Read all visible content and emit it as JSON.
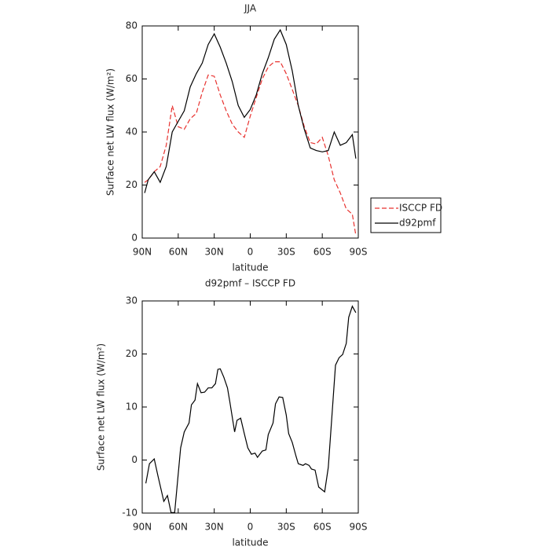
{
  "chart_data": [
    {
      "type": "line",
      "title": "JJA",
      "xlabel": "latitude",
      "ylabel": "Surface net LW flux (W/m²)",
      "x": [
        88,
        85,
        80,
        75,
        70,
        65,
        60,
        55,
        50,
        45,
        40,
        35,
        30,
        25,
        20,
        15,
        10,
        5,
        0,
        -5,
        -10,
        -15,
        -20,
        -25,
        -30,
        -35,
        -40,
        -45,
        -50,
        -55,
        -60,
        -65,
        -70,
        -75,
        -80,
        -85,
        -88
      ],
      "xlim": [
        90,
        -90
      ],
      "xticks": [
        {
          "value": 90,
          "label": "90N"
        },
        {
          "value": 60,
          "label": "60N"
        },
        {
          "value": 30,
          "label": "30N"
        },
        0,
        {
          "value": -30,
          "label": "30S"
        },
        {
          "value": -60,
          "label": "60S"
        },
        {
          "value": -90,
          "label": "90S"
        }
      ],
      "ylim": [
        0,
        80
      ],
      "yticks": [
        0,
        20,
        40,
        60,
        80
      ],
      "legend": "right",
      "series": [
        {
          "name": "ISCCP FD",
          "color": "#e8322f",
          "dashed": true,
          "values": [
            21,
            22,
            25,
            27,
            35,
            50,
            42,
            41,
            45,
            47,
            55,
            61.5,
            61,
            54,
            48,
            43,
            40,
            38,
            46,
            53,
            60,
            64.5,
            66.5,
            66.5,
            62,
            56,
            50,
            42,
            36,
            35.5,
            38,
            31,
            22,
            17,
            11,
            9,
            1
          ]
        },
        {
          "name": "d92pmf",
          "color": "#000000",
          "dashed": false,
          "values": [
            17,
            22,
            25,
            21,
            27,
            40,
            44,
            48,
            57,
            62,
            66,
            73,
            77,
            72,
            66,
            59,
            50,
            45.5,
            48.5,
            54,
            62,
            68,
            75,
            78.5,
            73,
            63,
            50,
            41,
            34,
            33,
            32.5,
            33,
            40,
            35,
            36,
            39,
            30
          ]
        }
      ]
    },
    {
      "type": "line",
      "title": "d92pmf – ISCCP FD",
      "xlabel": "latitude",
      "ylabel": "Surface net LW flux (W/m²)",
      "x": [
        87,
        84,
        80,
        77,
        72,
        69,
        66,
        63,
        58,
        55,
        51,
        49,
        46,
        44,
        41,
        38,
        35,
        32,
        29,
        27,
        25,
        22,
        19,
        17,
        13,
        11,
        8,
        5,
        2,
        -1,
        -4,
        -6,
        -10,
        -13,
        -15,
        -19,
        -21,
        -24,
        -27,
        -30,
        -32,
        -35,
        -38,
        -40,
        -44,
        -46,
        -49,
        -51,
        -54,
        -57,
        -62,
        -65,
        -68,
        -71,
        -74,
        -77,
        -80,
        -82,
        -85,
        -88
      ],
      "xlim": [
        90,
        -90
      ],
      "xticks": [
        {
          "value": 90,
          "label": "90N"
        },
        {
          "value": 60,
          "label": "60N"
        },
        {
          "value": 30,
          "label": "30N"
        },
        0,
        {
          "value": -30,
          "label": "30S"
        },
        {
          "value": -60,
          "label": "60S"
        },
        {
          "value": -90,
          "label": "90S"
        }
      ],
      "ylim": [
        -10,
        30
      ],
      "yticks": [
        -10,
        0,
        10,
        20,
        30
      ],
      "color": "#000000",
      "values": [
        -4.4,
        -0.7,
        0.2,
        -2.9,
        -7.8,
        -6.7,
        -9.9,
        -9.9,
        2.3,
        5.3,
        7,
        10.4,
        11.3,
        14.4,
        12.7,
        12.8,
        13.6,
        13.6,
        14.4,
        17.1,
        17.2,
        15.6,
        13.6,
        11,
        5.3,
        7.5,
        7.9,
        5,
        2.3,
        1.1,
        1.3,
        0.5,
        1.7,
        1.9,
        4.8,
        7,
        10.6,
        11.9,
        11.8,
        8.5,
        5,
        3.3,
        0.8,
        -0.7,
        -1,
        -0.7,
        -1,
        -1.7,
        -1.9,
        -5.1,
        -6,
        -1.4,
        8.2,
        17.9,
        19.3,
        19.9,
        22,
        26.9,
        29,
        27.8
      ]
    }
  ]
}
